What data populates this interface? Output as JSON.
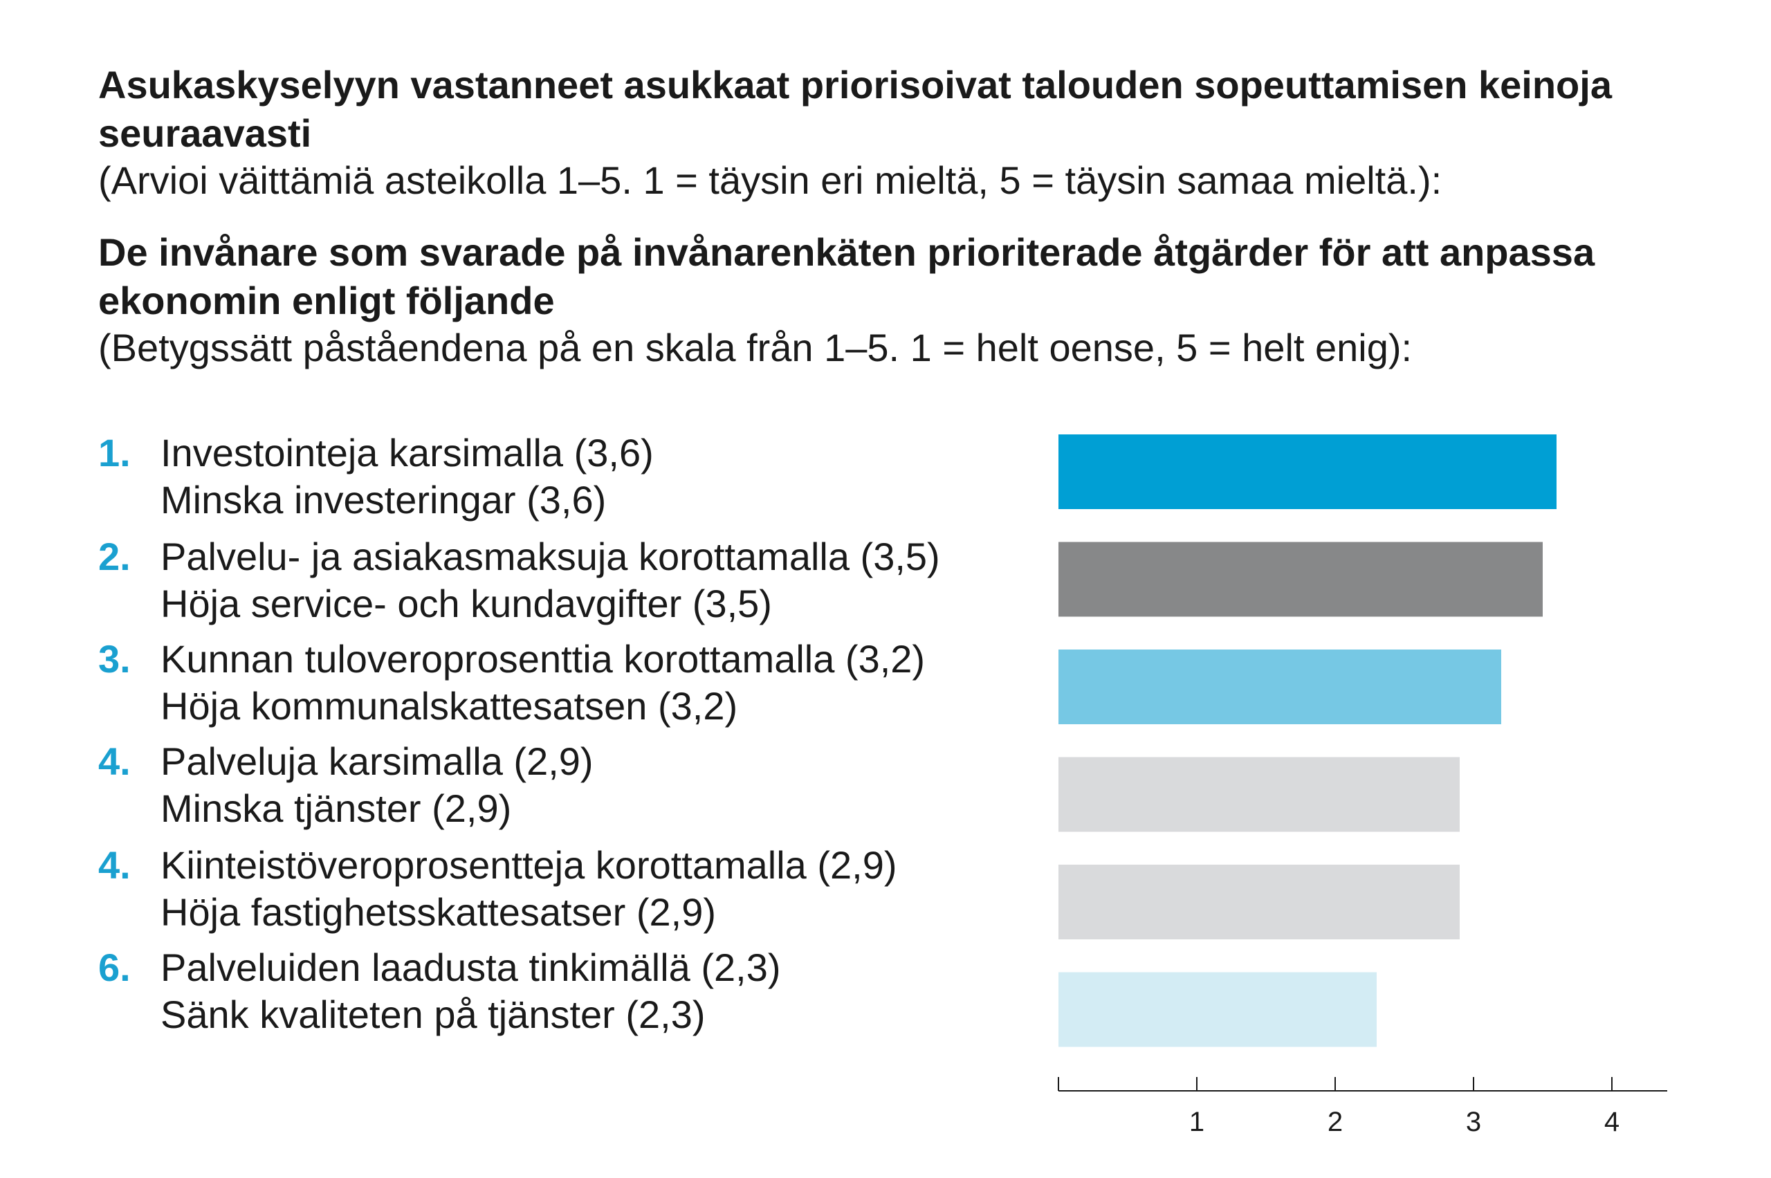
{
  "title_fi": "Asukaskyselyyn vastanneet asukkaat priorisoivat talouden sopeuttamisen keinoja seuraavasti",
  "subtitle_fi": "(Arvioi väittämiä asteikolla 1–5. 1 = täysin eri mieltä, 5 = täysin samaa mieltä.):",
  "title_sv": "De invånare som svarade på invånarenkäten prioriterade åtgärder för att anpassa ekonomin enligt följande",
  "subtitle_sv": "(Betygssätt påståendena på en skala från 1–5. 1 = helt oense, 5 = helt enig):",
  "items": [
    {
      "rank": "1.",
      "label_fi": "Investointeja karsimalla (3,6)",
      "label_sv": "Minska investeringar (3,6)"
    },
    {
      "rank": "2.",
      "label_fi": "Palvelu- ja asiakasmaksuja korottamalla (3,5)",
      "label_sv": "Höja service- och kundavgifter (3,5)"
    },
    {
      "rank": "3.",
      "label_fi": "Kunnan tuloveroprosenttia korottamalla (3,2)",
      "label_sv": "Höja kommunalskattesatsen (3,2)"
    },
    {
      "rank": "4.",
      "label_fi": "Palveluja karsimalla (2,9)",
      "label_sv": "Minska tjänster (2,9)"
    },
    {
      "rank": "4.",
      "label_fi": "Kiinteistöveroprosentteja korottamalla (2,9)",
      "label_sv": "Höja fastighetsskattesatser (2,9)"
    },
    {
      "rank": "6.",
      "label_fi": "Palveluiden laadusta tinkimällä (2,3)",
      "label_sv": "Sänk kvaliteten på tjänster (2,3)"
    }
  ],
  "chart_data": {
    "type": "bar",
    "orientation": "horizontal",
    "categories": [
      "Investointeja karsimalla",
      "Palvelu- ja asiakasmaksuja korottamalla",
      "Kunnan tuloveroprosenttia korottamalla",
      "Palveluja karsimalla",
      "Kiinteistöveroprosentteja korottamalla",
      "Palveluiden laadusta tinkimällä"
    ],
    "values": [
      3.6,
      3.5,
      3.2,
      2.9,
      2.9,
      2.3
    ],
    "colors": [
      "#009fd4",
      "#878889",
      "#76c8e4",
      "#d9dadc",
      "#d9dadc",
      "#d3ecf4"
    ],
    "xlim": [
      0,
      4.4
    ],
    "xticks": [
      0,
      1,
      2,
      3,
      4
    ],
    "xtick_labels": [
      "",
      "1",
      "2",
      "3",
      "4"
    ],
    "grid": false,
    "legend": "none"
  }
}
